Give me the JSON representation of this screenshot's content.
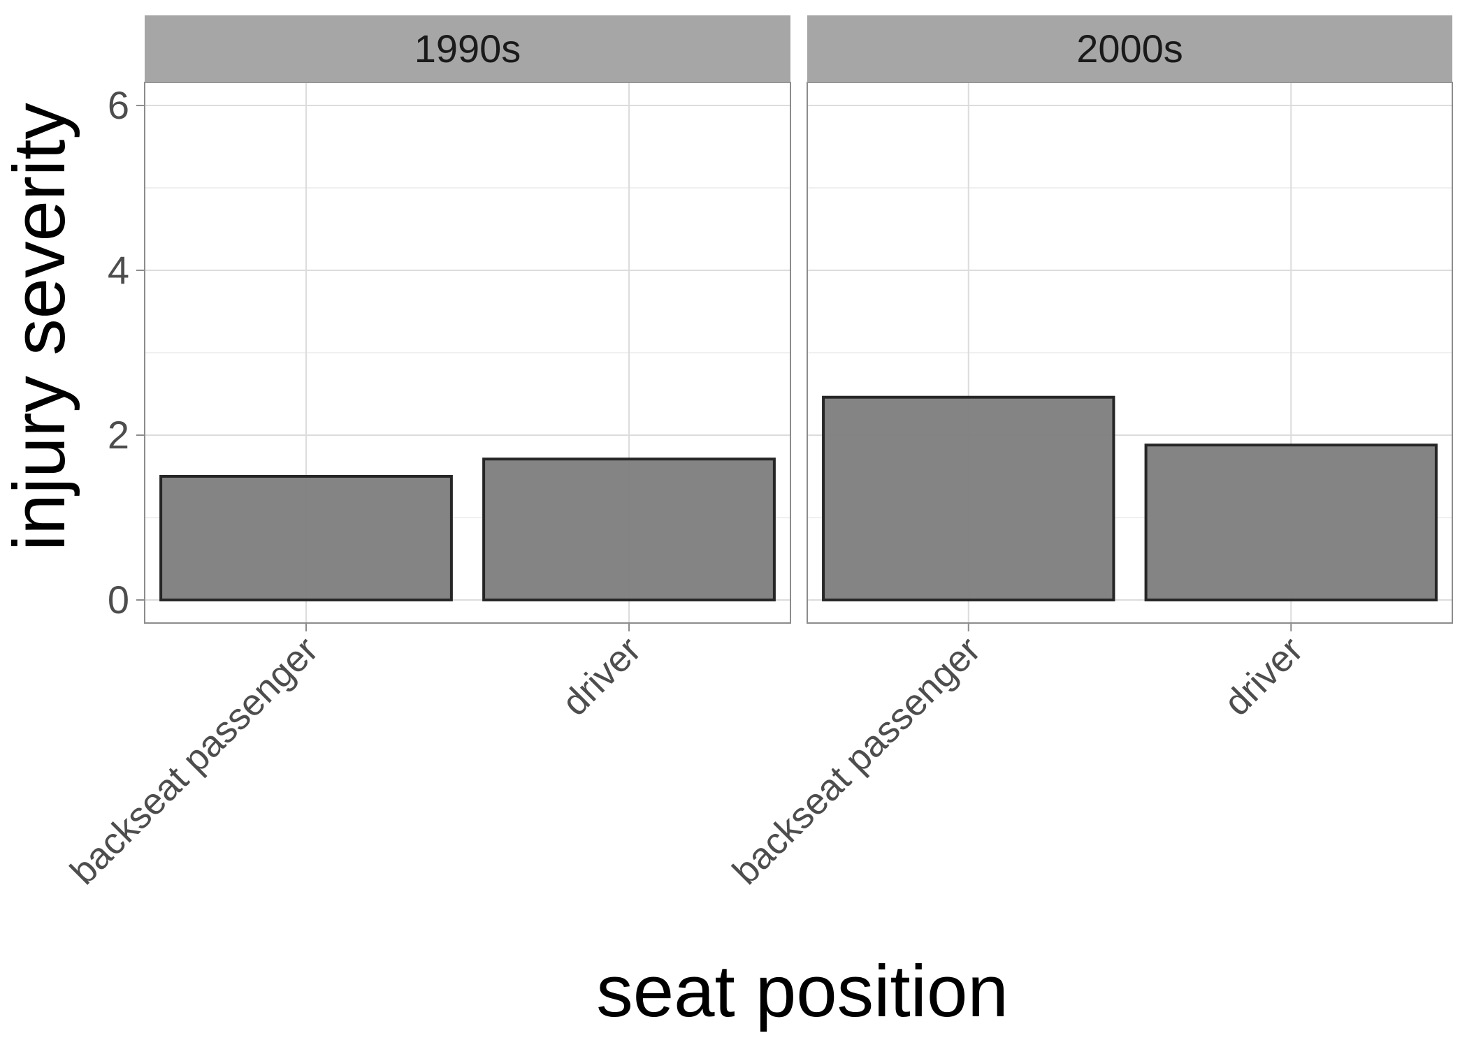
{
  "chart_data": {
    "type": "bar",
    "facet_by": "decade",
    "xlabel": "seat position",
    "ylabel": "injury severity",
    "ylim": [
      -0.28,
      6.28
    ],
    "y_ticks": [
      0,
      2,
      4,
      6
    ],
    "categories": [
      "backseat passenger",
      "driver"
    ],
    "facets": [
      {
        "name": "1990s",
        "values": [
          1.5,
          1.71
        ]
      },
      {
        "name": "2000s",
        "values": [
          2.46,
          1.88
        ]
      }
    ],
    "grid": true,
    "bar_fill": "#808080",
    "bar_stroke": "#262626",
    "strip_fill": "#a6a6a6"
  }
}
